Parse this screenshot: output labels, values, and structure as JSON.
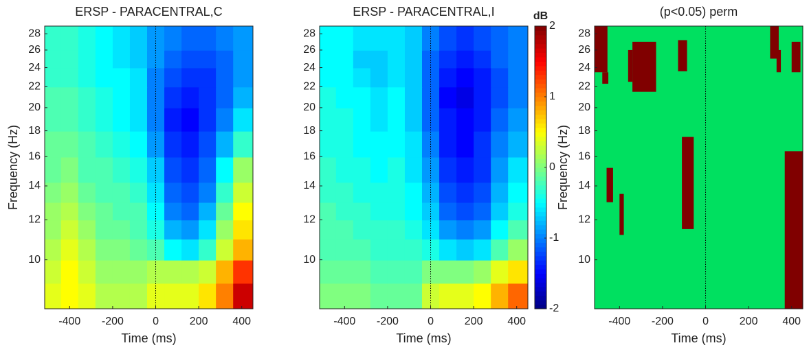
{
  "chart_data": [
    {
      "type": "heatmap",
      "title": "ERSP - PARACENTRAL,C",
      "xlabel": "Time (ms)",
      "ylabel": "Frequency (Hz)",
      "xlim": [
        -516,
        452
      ],
      "ylim": [
        8,
        29
      ],
      "ylog": true,
      "xticks": [
        -400,
        -200,
        0,
        200,
        400
      ],
      "yticks": [
        10,
        12,
        14,
        16,
        18,
        20,
        22,
        24,
        26,
        28
      ],
      "vline": 0,
      "colormap": "jet",
      "clim": [
        -2,
        2
      ],
      "x": [
        -480,
        -400,
        -320,
        -240,
        -160,
        -80,
        0,
        80,
        160,
        240,
        320,
        400
      ],
      "y": [
        8.5,
        9.5,
        10.5,
        11.5,
        12.5,
        13.5,
        15,
        17,
        19,
        21,
        23,
        25,
        27,
        28.5
      ],
      "values": [
        [
          0.4,
          0.5,
          0.4,
          0.2,
          0.2,
          0.2,
          0.4,
          0.4,
          0.4,
          0.6,
          1.0,
          1.7
        ],
        [
          0.3,
          0.5,
          0.3,
          0.1,
          0.1,
          0.1,
          0.2,
          0.2,
          0.2,
          0.3,
          0.8,
          1.3
        ],
        [
          0.2,
          0.4,
          0.2,
          0.0,
          0.0,
          -0.1,
          -0.2,
          -0.5,
          -0.6,
          -0.3,
          0.3,
          0.8
        ],
        [
          0.1,
          0.3,
          0.1,
          -0.1,
          -0.1,
          -0.2,
          -0.4,
          -0.8,
          -0.9,
          -0.6,
          0.1,
          0.6
        ],
        [
          0.1,
          0.2,
          0.0,
          -0.1,
          -0.2,
          -0.2,
          -0.5,
          -1.0,
          -1.1,
          -0.8,
          -0.1,
          0.5
        ],
        [
          0.0,
          0.1,
          -0.1,
          -0.2,
          -0.2,
          -0.3,
          -0.6,
          -1.1,
          -1.2,
          -1.0,
          -0.3,
          0.3
        ],
        [
          -0.1,
          0.0,
          -0.2,
          -0.2,
          -0.3,
          -0.4,
          -0.7,
          -1.2,
          -1.3,
          -1.1,
          -0.5,
          0.1
        ],
        [
          -0.1,
          -0.1,
          -0.2,
          -0.3,
          -0.4,
          -0.5,
          -0.9,
          -1.3,
          -1.4,
          -1.2,
          -0.8,
          -0.3
        ],
        [
          -0.2,
          -0.2,
          -0.3,
          -0.4,
          -0.5,
          -0.6,
          -1.0,
          -1.4,
          -1.5,
          -1.3,
          -1.0,
          -0.6
        ],
        [
          -0.2,
          -0.2,
          -0.3,
          -0.4,
          -0.5,
          -0.6,
          -1.0,
          -1.3,
          -1.4,
          -1.3,
          -1.1,
          -0.8
        ],
        [
          -0.3,
          -0.3,
          -0.4,
          -0.5,
          -0.5,
          -0.6,
          -1.0,
          -1.2,
          -1.3,
          -1.3,
          -1.1,
          -0.9
        ],
        [
          -0.3,
          -0.3,
          -0.4,
          -0.5,
          -0.6,
          -0.7,
          -0.9,
          -1.1,
          -1.2,
          -1.2,
          -1.1,
          -0.9
        ],
        [
          -0.3,
          -0.3,
          -0.4,
          -0.5,
          -0.6,
          -0.7,
          -0.9,
          -1.0,
          -1.1,
          -1.1,
          -1.0,
          -0.9
        ],
        [
          -0.3,
          -0.3,
          -0.4,
          -0.5,
          -0.6,
          -0.7,
          -0.9,
          -1.0,
          -1.1,
          -1.1,
          -1.0,
          -0.9
        ]
      ]
    },
    {
      "type": "heatmap",
      "title": "ERSP - PARACENTRAL,I",
      "xlabel": "Time (ms)",
      "xlim": [
        -516,
        452
      ],
      "ylim": [
        8,
        29
      ],
      "ylog": true,
      "xticks": [
        -400,
        -200,
        0,
        200,
        400
      ],
      "yticks": [
        10,
        12,
        14,
        16,
        18,
        20,
        22,
        24,
        26,
        28
      ],
      "vline": 0,
      "colormap": "jet",
      "clim": [
        -2,
        2
      ],
      "colorbar": {
        "label": "dB",
        "ticks": [
          -2,
          -1,
          0,
          1,
          2
        ]
      },
      "x": [
        -480,
        -400,
        -320,
        -240,
        -160,
        -80,
        0,
        80,
        160,
        240,
        320,
        400
      ],
      "y": [
        8.5,
        9.5,
        10.5,
        11.5,
        12.5,
        13.5,
        15,
        17,
        19,
        21,
        23,
        25,
        27,
        28.5
      ],
      "values": [
        [
          0.0,
          0.0,
          0.0,
          -0.1,
          -0.1,
          -0.1,
          0.3,
          0.4,
          0.4,
          0.5,
          0.8,
          1.1
        ],
        [
          -0.1,
          -0.1,
          -0.1,
          -0.2,
          -0.2,
          -0.2,
          0.0,
          0.0,
          0.0,
          0.1,
          0.4,
          0.6
        ],
        [
          -0.2,
          -0.2,
          -0.2,
          -0.3,
          -0.3,
          -0.3,
          -0.4,
          -0.6,
          -0.7,
          -0.6,
          -0.2,
          0.1
        ],
        [
          -0.2,
          -0.2,
          -0.3,
          -0.3,
          -0.3,
          -0.4,
          -0.6,
          -0.9,
          -1.0,
          -0.9,
          -0.5,
          -0.2
        ],
        [
          -0.2,
          -0.3,
          -0.3,
          -0.4,
          -0.4,
          -0.5,
          -0.7,
          -1.1,
          -1.2,
          -1.1,
          -0.7,
          -0.4
        ],
        [
          -0.3,
          -0.3,
          -0.4,
          -0.4,
          -0.4,
          -0.5,
          -0.8,
          -1.2,
          -1.3,
          -1.2,
          -0.8,
          -0.5
        ],
        [
          -0.3,
          -0.4,
          -0.4,
          -0.5,
          -0.4,
          -0.6,
          -0.9,
          -1.3,
          -1.4,
          -1.3,
          -0.9,
          -0.6
        ],
        [
          -0.4,
          -0.4,
          -0.5,
          -0.5,
          -0.5,
          -0.6,
          -1.0,
          -1.4,
          -1.5,
          -1.3,
          -1.0,
          -0.8
        ],
        [
          -0.4,
          -0.4,
          -0.5,
          -0.6,
          -0.5,
          -0.7,
          -1.1,
          -1.4,
          -1.5,
          -1.4,
          -1.1,
          -0.9
        ],
        [
          -0.4,
          -0.5,
          -0.5,
          -0.6,
          -0.5,
          -0.7,
          -1.1,
          -1.5,
          -1.6,
          -1.4,
          -1.2,
          -1.0
        ],
        [
          -0.5,
          -0.5,
          -0.6,
          -0.7,
          -0.6,
          -0.7,
          -1.1,
          -1.4,
          -1.5,
          -1.4,
          -1.2,
          -1.0
        ],
        [
          -0.5,
          -0.5,
          -0.7,
          -0.7,
          -0.6,
          -0.7,
          -1.1,
          -1.3,
          -1.4,
          -1.3,
          -1.1,
          -1.0
        ],
        [
          -0.5,
          -0.5,
          -0.6,
          -0.6,
          -0.6,
          -0.7,
          -1.0,
          -1.2,
          -1.3,
          -1.2,
          -1.1,
          -1.0
        ],
        [
          -0.5,
          -0.5,
          -0.6,
          -0.6,
          -0.6,
          -0.7,
          -1.0,
          -1.2,
          -1.3,
          -1.2,
          -1.1,
          -1.0
        ]
      ]
    },
    {
      "type": "mask",
      "title": "(p<0.05) perm",
      "xlabel": "Time (ms)",
      "ylabel": "Frequency (Hz)",
      "xlim": [
        -516,
        452
      ],
      "ylim": [
        8,
        29
      ],
      "ylog": true,
      "xticks": [
        -400,
        -200,
        0,
        200,
        400
      ],
      "yticks": [
        10,
        12,
        14,
        16,
        18,
        20,
        22,
        24,
        26,
        28
      ],
      "vline": 0,
      "background": "#00e060",
      "color": "#800000",
      "regions": [
        {
          "t": [
            -516,
            -456
          ],
          "f": [
            23.5,
            29
          ]
        },
        {
          "t": [
            -480,
            -452
          ],
          "f": [
            22.3,
            23.5
          ]
        },
        {
          "t": [
            -340,
            -230
          ],
          "f": [
            21.5,
            27
          ]
        },
        {
          "t": [
            -360,
            -340
          ],
          "f": [
            22.5,
            26
          ]
        },
        {
          "t": [
            -128,
            -86
          ],
          "f": [
            23.6,
            27.2
          ]
        },
        {
          "t": [
            300,
            340
          ],
          "f": [
            25,
            29
          ]
        },
        {
          "t": [
            330,
            350
          ],
          "f": [
            23.5,
            26
          ]
        },
        {
          "t": [
            400,
            441
          ],
          "f": [
            23.5,
            27
          ]
        },
        {
          "t": [
            368,
            452
          ],
          "f": [
            8,
            16.4
          ]
        },
        {
          "t": [
            -110,
            -55
          ],
          "f": [
            11.5,
            17.5
          ]
        },
        {
          "t": [
            -460,
            -430
          ],
          "f": [
            13,
            15.2
          ]
        },
        {
          "t": [
            -400,
            -380
          ],
          "f": [
            11.2,
            13.5
          ]
        }
      ]
    }
  ]
}
